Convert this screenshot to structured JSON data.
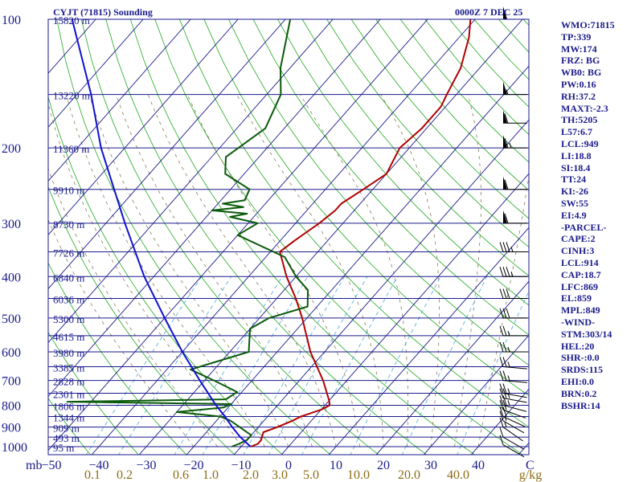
{
  "header": {
    "left": "CYJT (71815) Sounding",
    "right": "0000Z  7 DEC 25"
  },
  "indices": [
    "WMO:71815",
    "TP:339",
    "MW:174",
    "FRZ: BG",
    "WB0: BG",
    "PW:0.16",
    "RH:37.2",
    "MAXT:-2.3",
    "TH:5205",
    "L57:6.7",
    "LCL:949",
    "LI:18.8",
    "SI:18.4",
    "TT:24",
    "KI:-26",
    "SW:55",
    "EI:4.9",
    "-PARCEL-",
    "CAPE:2",
    "CINH:3",
    "LCL:914",
    "CAP:18.7",
    "LFC:869",
    "EL:859",
    "MPL:849",
    "-WIND-",
    "STM:303/14",
    "HEL:20",
    "SHR-:0.0",
    "SRDS:115",
    "EHI:0.0",
    "BRN:0.2",
    "BSHR:14"
  ],
  "colors": {
    "axis": "#1a1a8c",
    "isobar": "#1a1a8c",
    "isotherm": "#1a1a8c",
    "dry_adiabat": "#1faa1f",
    "moist_adiabat": "#8a7a5a",
    "mixing_ratio": "#4aa8d8",
    "temperature": "#b00000",
    "dewpoint": "#0a5a0a",
    "parcel": "#1010d0",
    "mixing_label": "#8b6b14",
    "wind": "#000000"
  },
  "chart_data": {
    "type": "skew-t",
    "ylabel": "mb",
    "xlabel_right": "C",
    "mixing_ratio_unit": "g/kg",
    "pressure_ticks": [
      100,
      200,
      300,
      400,
      500,
      600,
      700,
      800,
      900,
      1000
    ],
    "temperature_ticks": [
      -50,
      -40,
      -30,
      -20,
      -10,
      0,
      10,
      20,
      30,
      40
    ],
    "temperature_range": [
      -50,
      50
    ],
    "pressure_range": [
      100,
      1050
    ],
    "isobar_levels": [
      100,
      150,
      200,
      250,
      300,
      350,
      400,
      450,
      500,
      550,
      600,
      650,
      700,
      750,
      800,
      850,
      900,
      950,
      1000
    ],
    "mixing_ratio_labels": [
      "0.1",
      "0.2",
      "0.6",
      "1.0",
      "2.0",
      "3.0",
      "5.0",
      "10.0",
      "20.0",
      "40.0"
    ],
    "height_labels": [
      {
        "p": 100,
        "label": "15820 m"
      },
      {
        "p": 150,
        "label": "13220 m"
      },
      {
        "p": 200,
        "label": "11360 m"
      },
      {
        "p": 250,
        "label": "9910 m"
      },
      {
        "p": 300,
        "label": "8730 m"
      },
      {
        "p": 350,
        "label": "7726 m"
      },
      {
        "p": 400,
        "label": "6840 m"
      },
      {
        "p": 450,
        "label": "6036 m"
      },
      {
        "p": 500,
        "label": "5300 m"
      },
      {
        "p": 550,
        "label": "4615 m"
      },
      {
        "p": 600,
        "label": "3980 m"
      },
      {
        "p": 650,
        "label": "3385 m"
      },
      {
        "p": 700,
        "label": "2828 m"
      },
      {
        "p": 750,
        "label": "2301 m"
      },
      {
        "p": 800,
        "label": "1806 m"
      },
      {
        "p": 850,
        "label": "1344 m"
      },
      {
        "p": 900,
        "label": "909 m"
      },
      {
        "p": 950,
        "label": "493 m"
      },
      {
        "p": 1000,
        "label": "95 m"
      }
    ],
    "series": [
      {
        "name": "",
        "kind": "temperature",
        "points": [
          {
            "p": 1000,
            "t": -8
          },
          {
            "p": 985,
            "t": -7
          },
          {
            "p": 965,
            "t": -7
          },
          {
            "p": 925,
            "t": -8
          },
          {
            "p": 900,
            "t": -6
          },
          {
            "p": 870,
            "t": -4
          },
          {
            "p": 850,
            "t": -3
          },
          {
            "p": 820,
            "t": 0
          },
          {
            "p": 800,
            "t": 1
          },
          {
            "p": 780,
            "t": 0
          },
          {
            "p": 700,
            "t": -5
          },
          {
            "p": 600,
            "t": -13
          },
          {
            "p": 500,
            "t": -21
          },
          {
            "p": 450,
            "t": -26
          },
          {
            "p": 400,
            "t": -32
          },
          {
            "p": 350,
            "t": -38
          },
          {
            "p": 330,
            "t": -37
          },
          {
            "p": 300,
            "t": -35
          },
          {
            "p": 280,
            "t": -34
          },
          {
            "p": 270,
            "t": -34
          },
          {
            "p": 250,
            "t": -32
          },
          {
            "p": 230,
            "t": -30
          },
          {
            "p": 200,
            "t": -32
          },
          {
            "p": 180,
            "t": -31
          },
          {
            "p": 160,
            "t": -31
          },
          {
            "p": 150,
            "t": -32
          },
          {
            "p": 130,
            "t": -34
          },
          {
            "p": 110,
            "t": -38
          },
          {
            "p": 100,
            "t": -41
          }
        ]
      },
      {
        "name": "",
        "kind": "dewpoint",
        "points": [
          {
            "p": 1000,
            "t": -12
          },
          {
            "p": 985,
            "t": -11
          },
          {
            "p": 965,
            "t": -10
          },
          {
            "p": 940,
            "t": -10
          },
          {
            "p": 930,
            "t": -11
          },
          {
            "p": 870,
            "t": -17
          },
          {
            "p": 850,
            "t": -20
          },
          {
            "p": 830,
            "t": -30
          },
          {
            "p": 810,
            "t": -21
          },
          {
            "p": 795,
            "t": -20
          },
          {
            "p": 785,
            "t": -55
          },
          {
            "p": 775,
            "t": -22
          },
          {
            "p": 745,
            "t": -21
          },
          {
            "p": 700,
            "t": -28
          },
          {
            "p": 660,
            "t": -35
          },
          {
            "p": 600,
            "t": -26
          },
          {
            "p": 530,
            "t": -30
          },
          {
            "p": 500,
            "t": -28
          },
          {
            "p": 470,
            "t": -22
          },
          {
            "p": 430,
            "t": -25
          },
          {
            "p": 400,
            "t": -30
          },
          {
            "p": 360,
            "t": -36
          },
          {
            "p": 320,
            "t": -50
          },
          {
            "p": 300,
            "t": -48
          },
          {
            "p": 290,
            "t": -55
          },
          {
            "p": 285,
            "t": -52
          },
          {
            "p": 280,
            "t": -60
          },
          {
            "p": 275,
            "t": -54
          },
          {
            "p": 270,
            "t": -59
          },
          {
            "p": 265,
            "t": -55
          },
          {
            "p": 250,
            "t": -56
          },
          {
            "p": 230,
            "t": -64
          },
          {
            "p": 210,
            "t": -67
          },
          {
            "p": 180,
            "t": -64
          },
          {
            "p": 150,
            "t": -67
          },
          {
            "p": 130,
            "t": -72
          },
          {
            "p": 100,
            "t": -79
          }
        ]
      },
      {
        "name": "",
        "kind": "parcel",
        "points": [
          {
            "p": 1000,
            "t": -8
          },
          {
            "p": 949,
            "t": -12
          },
          {
            "p": 900,
            "t": -15.5
          },
          {
            "p": 850,
            "t": -19
          },
          {
            "p": 800,
            "t": -23
          },
          {
            "p": 700,
            "t": -31
          },
          {
            "p": 600,
            "t": -40
          },
          {
            "p": 500,
            "t": -50
          },
          {
            "p": 400,
            "t": -62
          },
          {
            "p": 300,
            "t": -76
          },
          {
            "p": 200,
            "t": -95
          },
          {
            "p": 150,
            "t": -107
          },
          {
            "p": 100,
            "t": -125
          }
        ]
      }
    ],
    "wind_barbs": [
      {
        "p": 990,
        "dir": 300,
        "speed": 10
      },
      {
        "p": 950,
        "dir": 300,
        "speed": 10
      },
      {
        "p": 900,
        "dir": 305,
        "speed": 15
      },
      {
        "p": 870,
        "dir": 300,
        "speed": 15
      },
      {
        "p": 850,
        "dir": 295,
        "speed": 20
      },
      {
        "p": 820,
        "dir": 290,
        "speed": 20
      },
      {
        "p": 800,
        "dir": 285,
        "speed": 25
      },
      {
        "p": 770,
        "dir": 280,
        "speed": 25
      },
      {
        "p": 750,
        "dir": 280,
        "speed": 25
      },
      {
        "p": 700,
        "dir": 275,
        "speed": 25
      },
      {
        "p": 650,
        "dir": 275,
        "speed": 25
      },
      {
        "p": 600,
        "dir": 270,
        "speed": 25
      },
      {
        "p": 550,
        "dir": 270,
        "speed": 25
      },
      {
        "p": 500,
        "dir": 270,
        "speed": 30
      },
      {
        "p": 450,
        "dir": 270,
        "speed": 30
      },
      {
        "p": 400,
        "dir": 270,
        "speed": 35
      },
      {
        "p": 350,
        "dir": 270,
        "speed": 35
      },
      {
        "p": 300,
        "dir": 270,
        "speed": 60
      },
      {
        "p": 250,
        "dir": 270,
        "speed": 60
      },
      {
        "p": 200,
        "dir": 270,
        "speed": 65
      },
      {
        "p": 175,
        "dir": 270,
        "speed": 60
      },
      {
        "p": 150,
        "dir": 270,
        "speed": 55
      },
      {
        "p": 100,
        "dir": 270,
        "speed": 50
      }
    ]
  }
}
